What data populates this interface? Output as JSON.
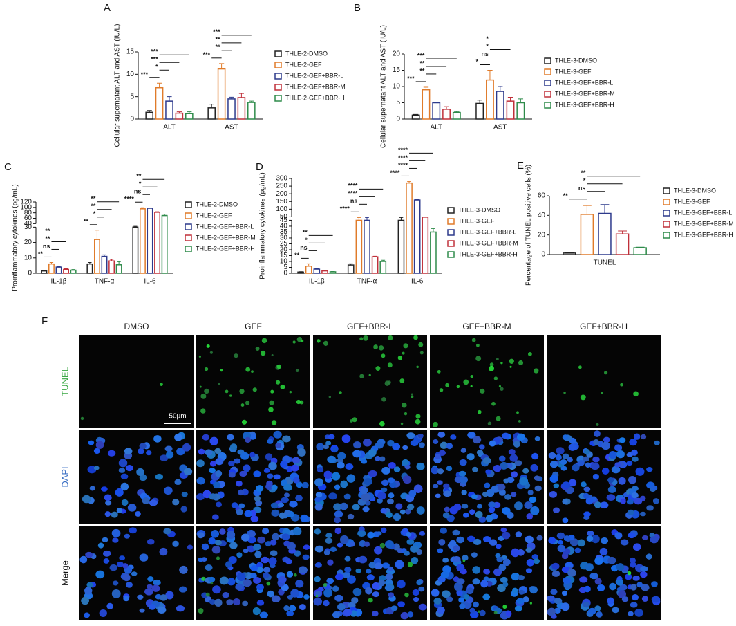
{
  "chart_data": [
    {
      "type": "bar",
      "panel_label": "A",
      "ylabel": "Cellular supernatant ALT and AST (IU/L)",
      "categories": [
        "ALT",
        "AST"
      ],
      "series": [
        {
          "name": "THLE-2-DMSO",
          "color": "#222222",
          "values": [
            1.5,
            2.5
          ],
          "errors": [
            0.4,
            0.8
          ]
        },
        {
          "name": "THLE-2-GEF",
          "color": "#e07b2a",
          "values": [
            7,
            11.2
          ],
          "errors": [
            1,
            1.2
          ]
        },
        {
          "name": "THLE-2-GEF+BBR-L",
          "color": "#2d3a8c",
          "values": [
            4,
            4.5
          ],
          "errors": [
            1,
            0.4
          ]
        },
        {
          "name": "THLE-2-GEF+BBR-M",
          "color": "#c0303a",
          "values": [
            1.3,
            4.8
          ],
          "errors": [
            0.3,
            0.9
          ]
        },
        {
          "name": "THLE-2-GEF+BBR-H",
          "color": "#2e8b4a",
          "values": [
            1.2,
            3.7
          ],
          "errors": [
            0.4,
            0.3
          ]
        }
      ],
      "ylim": [
        0,
        15
      ],
      "yticks": [
        0,
        5,
        10,
        15
      ],
      "comparisons": [
        {
          "label": "***",
          "category": 0,
          "from": 0,
          "to": 1
        },
        {
          "label": "*",
          "category": 0,
          "from": 1,
          "to": 2
        },
        {
          "label": "***",
          "category": 0,
          "from": 1,
          "to": 3
        },
        {
          "label": "***",
          "category": 0,
          "from": 1,
          "to": 4
        },
        {
          "label": "***",
          "category": 1,
          "from": 0,
          "to": 1
        },
        {
          "label": "**",
          "category": 1,
          "from": 1,
          "to": 2
        },
        {
          "label": "**",
          "category": 1,
          "from": 1,
          "to": 3
        },
        {
          "label": "***",
          "category": 1,
          "from": 1,
          "to": 4
        }
      ]
    },
    {
      "type": "bar",
      "panel_label": "B",
      "ylabel": "Cellular supernatant ALT and AST (IU/L)",
      "categories": [
        "ALT",
        "AST"
      ],
      "series": [
        {
          "name": "THLE-3-DMSO",
          "color": "#222222",
          "values": [
            1.2,
            4.8
          ],
          "errors": [
            0.2,
            1
          ]
        },
        {
          "name": "THLE-3-GEF",
          "color": "#e07b2a",
          "values": [
            9,
            12
          ],
          "errors": [
            0.8,
            3
          ]
        },
        {
          "name": "THLE-3-GEF+BBR-L",
          "color": "#2d3a8c",
          "values": [
            5,
            8.5
          ],
          "errors": [
            0.2,
            1.5
          ]
        },
        {
          "name": "THLE-3-GEF+BBR-M",
          "color": "#c0303a",
          "values": [
            3,
            5.5
          ],
          "errors": [
            0.8,
            1.2
          ]
        },
        {
          "name": "THLE-3-GEF+BBR-H",
          "color": "#2e8b4a",
          "values": [
            2,
            5
          ],
          "errors": [
            0.3,
            1.2
          ]
        }
      ],
      "ylim": [
        0,
        20
      ],
      "yticks": [
        0,
        5,
        10,
        15,
        20
      ],
      "comparisons": [
        {
          "label": "***",
          "category": 0,
          "from": 0,
          "to": 1
        },
        {
          "label": "**",
          "category": 0,
          "from": 1,
          "to": 2
        },
        {
          "label": "**",
          "category": 0,
          "from": 1,
          "to": 3
        },
        {
          "label": "***",
          "category": 0,
          "from": 1,
          "to": 4
        },
        {
          "label": "*",
          "category": 1,
          "from": 0,
          "to": 1
        },
        {
          "label": "ns",
          "category": 1,
          "from": 1,
          "to": 2
        },
        {
          "label": "*",
          "category": 1,
          "from": 1,
          "to": 3
        },
        {
          "label": "*",
          "category": 1,
          "from": 1,
          "to": 4
        }
      ]
    },
    {
      "type": "bar",
      "panel_label": "C",
      "ylabel": "Proinflammatory cytokines (pg/mL)",
      "categories": [
        "IL-1β",
        "TNF-α",
        "IL-6"
      ],
      "series": [
        {
          "name": "THLE-2-DMSO",
          "color": "#222222",
          "values": [
            1.5,
            6,
            30
          ],
          "errors": [
            0.3,
            1,
            0.5
          ]
        },
        {
          "name": "THLE-2-GEF",
          "color": "#e07b2a",
          "values": [
            6,
            22,
            95
          ],
          "errors": [
            1,
            6,
            4
          ]
        },
        {
          "name": "THLE-2-GEF+BBR-L",
          "color": "#2d3a8c",
          "values": [
            4,
            11,
            97
          ],
          "errors": [
            0.5,
            1,
            1
          ]
        },
        {
          "name": "THLE-2-GEF+BBR-M",
          "color": "#c0303a",
          "values": [
            2.5,
            8,
            82
          ],
          "errors": [
            0.4,
            1,
            2
          ]
        },
        {
          "name": "THLE-2-GEF+BBR-H",
          "color": "#2e8b4a",
          "values": [
            2,
            5.5,
            70
          ],
          "errors": [
            0.4,
            2,
            5
          ]
        }
      ],
      "y_segments": [
        {
          "ylim": [
            0,
            30
          ],
          "yticks": [
            0,
            10,
            20,
            30
          ]
        },
        {
          "ylim": [
            40,
            120
          ],
          "yticks": [
            40,
            60,
            80,
            100,
            120
          ]
        }
      ],
      "comparisons": [
        {
          "label": "**",
          "category": 0,
          "from": 0,
          "to": 1
        },
        {
          "label": "ns",
          "category": 0,
          "from": 1,
          "to": 2
        },
        {
          "label": "**",
          "category": 0,
          "from": 1,
          "to": 3
        },
        {
          "label": "**",
          "category": 0,
          "from": 1,
          "to": 4
        },
        {
          "label": "**",
          "category": 1,
          "from": 0,
          "to": 1
        },
        {
          "label": "*",
          "category": 1,
          "from": 1,
          "to": 2
        },
        {
          "label": "**",
          "category": 1,
          "from": 1,
          "to": 3
        },
        {
          "label": "**",
          "category": 1,
          "from": 1,
          "to": 4
        },
        {
          "label": "****",
          "category": 2,
          "from": 0,
          "to": 1
        },
        {
          "label": "ns",
          "category": 2,
          "from": 1,
          "to": 2
        },
        {
          "label": "*",
          "category": 2,
          "from": 1,
          "to": 3
        },
        {
          "label": "**",
          "category": 2,
          "from": 1,
          "to": 4
        }
      ]
    },
    {
      "type": "bar",
      "panel_label": "D",
      "ylabel": "Proinflammatory cytokines (pg/mL)",
      "categories": [
        "IL-1β",
        "TNF-α",
        "IL-6"
      ],
      "series": [
        {
          "name": "THLE-3-DMSO",
          "color": "#222222",
          "values": [
            1,
            7,
            45
          ],
          "errors": [
            0.3,
            1,
            1
          ]
        },
        {
          "name": "THLE-3-GEF",
          "color": "#e07b2a",
          "values": [
            6,
            45,
            270
          ],
          "errors": [
            2,
            1,
            10
          ]
        },
        {
          "name": "THLE-3-GEF+BBR-L",
          "color": "#2d3a8c",
          "values": [
            3.5,
            45,
            160
          ],
          "errors": [
            0.5,
            1,
            5
          ]
        },
        {
          "name": "THLE-3-GEF+BBR-M",
          "color": "#c0303a",
          "values": [
            2,
            14,
            48
          ],
          "errors": [
            0.3,
            0.5,
            1
          ]
        },
        {
          "name": "THLE-3-GEF+BBR-H",
          "color": "#2e8b4a",
          "values": [
            1.2,
            10,
            35
          ],
          "errors": [
            0.3,
            1,
            3
          ]
        }
      ],
      "y_segments": [
        {
          "ylim": [
            0,
            45
          ],
          "yticks": [
            0,
            5,
            10,
            15,
            20,
            25,
            30,
            35,
            40,
            45
          ]
        },
        {
          "ylim": [
            50,
            300
          ],
          "yticks": [
            50,
            100,
            150,
            200,
            250,
            300
          ]
        }
      ],
      "comparisons": [
        {
          "label": "**",
          "category": 0,
          "from": 0,
          "to": 1
        },
        {
          "label": "ns",
          "category": 0,
          "from": 1,
          "to": 2
        },
        {
          "label": "*",
          "category": 0,
          "from": 1,
          "to": 3
        },
        {
          "label": "**",
          "category": 0,
          "from": 1,
          "to": 4
        },
        {
          "label": "****",
          "category": 1,
          "from": 0,
          "to": 1
        },
        {
          "label": "ns",
          "category": 1,
          "from": 1,
          "to": 2
        },
        {
          "label": "****",
          "category": 1,
          "from": 1,
          "to": 3
        },
        {
          "label": "****",
          "category": 1,
          "from": 1,
          "to": 4
        },
        {
          "label": "****",
          "category": 2,
          "from": 0,
          "to": 1
        },
        {
          "label": "****",
          "category": 2,
          "from": 1,
          "to": 2
        },
        {
          "label": "****",
          "category": 2,
          "from": 1,
          "to": 3
        },
        {
          "label": "****",
          "category": 2,
          "from": 1,
          "to": 4
        }
      ]
    },
    {
      "type": "bar",
      "panel_label": "E",
      "ylabel": "Percentage of TUNEL positive cells (%)",
      "categories": [
        "TUNEL"
      ],
      "series": [
        {
          "name": "THLE-3-DMSO",
          "color": "#222222",
          "values": [
            1.5
          ],
          "errors": [
            0.5
          ]
        },
        {
          "name": "THLE-3-GEF",
          "color": "#e07b2a",
          "values": [
            41
          ],
          "errors": [
            9
          ]
        },
        {
          "name": "THLE-3-GEF+BBR-L",
          "color": "#2d3a8c",
          "values": [
            42
          ],
          "errors": [
            9
          ]
        },
        {
          "name": "THLE-3-GEF+BBR-M",
          "color": "#c0303a",
          "values": [
            21
          ],
          "errors": [
            3
          ]
        },
        {
          "name": "THLE-3-GEF+BBR-H",
          "color": "#2e8b4a",
          "values": [
            7
          ],
          "errors": [
            0.6
          ]
        }
      ],
      "ylim": [
        0,
        60
      ],
      "yticks": [
        0,
        20,
        40,
        60
      ],
      "comparisons": [
        {
          "label": "**",
          "category": 0,
          "from": 0,
          "to": 1
        },
        {
          "label": "ns",
          "category": 0,
          "from": 1,
          "to": 2
        },
        {
          "label": "*",
          "category": 0,
          "from": 1,
          "to": 3
        },
        {
          "label": "**",
          "category": 0,
          "from": 1,
          "to": 4
        }
      ]
    }
  ],
  "panel_f": {
    "panel_label": "F",
    "columns": [
      "DMSO",
      "GEF",
      "GEF+BBR-L",
      "GEF+BBR-M",
      "GEF+BBR-H"
    ],
    "rows": [
      "TUNEL",
      "DAPI",
      "Merge"
    ],
    "scale_bar": "50μm"
  }
}
